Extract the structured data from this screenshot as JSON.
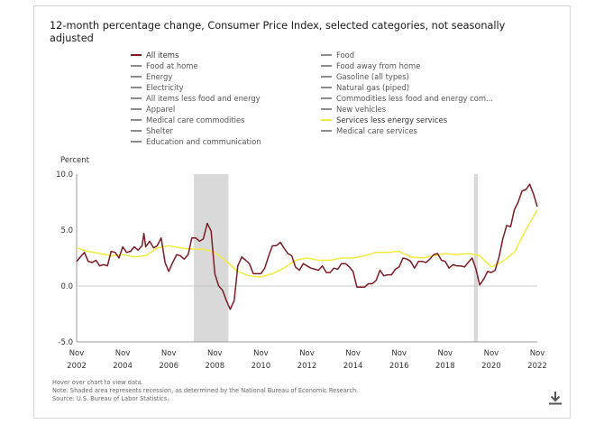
{
  "title": "12-month percentage change, Consumer Price Index, selected categories, not seasonally adjusted",
  "legend": {
    "left": [
      {
        "label": "All items",
        "color": "#7b1c25",
        "active": true
      },
      {
        "label": "Food at home",
        "color": "#8c8c8c",
        "active": false
      },
      {
        "label": "Energy",
        "color": "#8c8c8c",
        "active": false
      },
      {
        "label": "Electricity",
        "color": "#8c8c8c",
        "active": false
      },
      {
        "label": "All items less food and energy",
        "color": "#8c8c8c",
        "active": false
      },
      {
        "label": "Apparel",
        "color": "#8c8c8c",
        "active": false
      },
      {
        "label": "Medical care commodities",
        "color": "#8c8c8c",
        "active": false
      },
      {
        "label": "Shelter",
        "color": "#8c8c8c",
        "active": false
      },
      {
        "label": "Education and communication",
        "color": "#8c8c8c",
        "active": false
      }
    ],
    "right": [
      {
        "label": "Food",
        "color": "#8c8c8c",
        "active": false
      },
      {
        "label": "Food away from home",
        "color": "#8c8c8c",
        "active": false
      },
      {
        "label": "Gasoline (all types)",
        "color": "#8c8c8c",
        "active": false
      },
      {
        "label": "Natural gas (piped)",
        "color": "#8c8c8c",
        "active": false
      },
      {
        "label": "Commodities less food and energy com...",
        "color": "#8c8c8c",
        "active": false
      },
      {
        "label": "New vehicles",
        "color": "#8c8c8c",
        "active": false
      },
      {
        "label": "Services less energy services",
        "color": "#f2ea3c",
        "active": true
      },
      {
        "label": "Medical care services",
        "color": "#8c8c8c",
        "active": false
      }
    ]
  },
  "footnotes": {
    "hover": "Hover over chart to view data.",
    "note": "Note: Shaded area represents recession, as determined by the National Bureau of Economic Research.",
    "source": "Source: U.S. Bureau of Labor Statistics."
  },
  "download_icon": "download-icon",
  "chart_data": {
    "type": "line",
    "ylabel": "Percent",
    "ylim": [
      -5.0,
      10.0
    ],
    "yticks": [
      "10.0",
      "5.0",
      "0.0",
      "-5.0"
    ],
    "ytick_values": [
      10,
      5,
      0,
      -5
    ],
    "xlim": [
      2002.83,
      2022.83
    ],
    "xticks": [
      {
        "top": "Nov",
        "bottom": "2002",
        "x": 2002.83
      },
      {
        "top": "Nov",
        "bottom": "2004",
        "x": 2004.83
      },
      {
        "top": "Nov",
        "bottom": "2006",
        "x": 2006.83
      },
      {
        "top": "Nov",
        "bottom": "2008",
        "x": 2008.83
      },
      {
        "top": "Nov",
        "bottom": "2010",
        "x": 2010.83
      },
      {
        "top": "Nov",
        "bottom": "2012",
        "x": 2012.83
      },
      {
        "top": "Nov",
        "bottom": "2014",
        "x": 2014.83
      },
      {
        "top": "Nov",
        "bottom": "2016",
        "x": 2016.83
      },
      {
        "top": "Nov",
        "bottom": "2018",
        "x": 2018.83
      },
      {
        "top": "Nov",
        "bottom": "2020",
        "x": 2020.83
      },
      {
        "top": "Nov",
        "bottom": "2022",
        "x": 2022.83
      }
    ],
    "recessions": [
      [
        2007.92,
        2009.42
      ],
      [
        2020.08,
        2020.25
      ]
    ],
    "grid": "zero-line",
    "series": [
      {
        "name": "All items",
        "color": "#7b1c25",
        "x": [
          2002.83,
          2003.0,
          2003.17,
          2003.33,
          2003.5,
          2003.67,
          2003.83,
          2004.0,
          2004.17,
          2004.33,
          2004.5,
          2004.67,
          2004.83,
          2005.0,
          2005.17,
          2005.33,
          2005.5,
          2005.67,
          2005.75,
          2005.83,
          2006.0,
          2006.17,
          2006.33,
          2006.5,
          2006.67,
          2006.83,
          2007.0,
          2007.17,
          2007.33,
          2007.5,
          2007.67,
          2007.83,
          2008.0,
          2008.17,
          2008.33,
          2008.5,
          2008.67,
          2008.83,
          2009.0,
          2009.17,
          2009.33,
          2009.5,
          2009.67,
          2009.83,
          2010.0,
          2010.17,
          2010.33,
          2010.5,
          2010.67,
          2010.83,
          2011.0,
          2011.17,
          2011.33,
          2011.5,
          2011.67,
          2011.83,
          2012.0,
          2012.17,
          2012.33,
          2012.5,
          2012.67,
          2012.83,
          2013.0,
          2013.17,
          2013.33,
          2013.5,
          2013.67,
          2013.83,
          2014.0,
          2014.17,
          2014.33,
          2014.5,
          2014.67,
          2014.83,
          2015.0,
          2015.17,
          2015.33,
          2015.5,
          2015.67,
          2015.83,
          2016.0,
          2016.17,
          2016.33,
          2016.5,
          2016.67,
          2016.83,
          2017.0,
          2017.17,
          2017.33,
          2017.5,
          2017.67,
          2017.83,
          2018.0,
          2018.17,
          2018.33,
          2018.5,
          2018.67,
          2018.83,
          2019.0,
          2019.17,
          2019.33,
          2019.5,
          2019.67,
          2019.83,
          2020.0,
          2020.17,
          2020.33,
          2020.5,
          2020.67,
          2020.83,
          2021.0,
          2021.17,
          2021.33,
          2021.5,
          2021.67,
          2021.83,
          2022.0,
          2022.17,
          2022.33,
          2022.5,
          2022.67,
          2022.83
        ],
        "y": [
          2.2,
          2.6,
          3.0,
          2.2,
          2.1,
          2.3,
          1.8,
          1.9,
          1.8,
          3.1,
          3.0,
          2.5,
          3.5,
          3.0,
          3.1,
          3.5,
          3.2,
          3.6,
          4.7,
          3.5,
          4.0,
          3.4,
          3.6,
          4.3,
          2.1,
          1.3,
          2.1,
          2.8,
          2.7,
          2.4,
          2.8,
          4.3,
          4.3,
          4.0,
          4.2,
          5.6,
          4.9,
          1.1,
          0.0,
          -0.4,
          -1.3,
          -2.1,
          -1.3,
          1.8,
          2.6,
          2.3,
          2.0,
          1.1,
          1.1,
          1.1,
          1.6,
          2.7,
          3.6,
          3.6,
          3.9,
          3.4,
          2.9,
          2.7,
          1.7,
          1.4,
          2.0,
          1.8,
          1.6,
          1.5,
          1.4,
          1.8,
          1.2,
          1.2,
          1.6,
          1.5,
          2.0,
          2.0,
          1.7,
          1.3,
          -0.1,
          -0.1,
          -0.1,
          0.2,
          0.2,
          0.5,
          1.4,
          0.9,
          1.0,
          1.0,
          1.5,
          1.7,
          2.5,
          2.4,
          2.2,
          1.6,
          2.2,
          2.2,
          2.1,
          2.4,
          2.8,
          2.9,
          2.3,
          2.2,
          1.6,
          1.9,
          1.8,
          1.8,
          1.7,
          2.1,
          2.5,
          1.5,
          0.1,
          0.6,
          1.3,
          1.2,
          1.4,
          2.6,
          4.2,
          5.4,
          5.3,
          6.8,
          7.5,
          8.5,
          8.6,
          9.1,
          8.2,
          7.1
        ]
      },
      {
        "name": "Services less energy services",
        "color": "#f2ea3c",
        "x": [
          2002.83,
          2003.33,
          2003.83,
          2004.33,
          2004.83,
          2005.33,
          2005.83,
          2006.33,
          2006.83,
          2007.33,
          2007.83,
          2008.33,
          2008.83,
          2009.33,
          2009.83,
          2010.33,
          2010.83,
          2011.33,
          2011.83,
          2012.33,
          2012.83,
          2013.33,
          2013.83,
          2014.33,
          2014.83,
          2015.33,
          2015.83,
          2016.33,
          2016.83,
          2017.33,
          2017.83,
          2018.33,
          2018.83,
          2019.33,
          2019.83,
          2020.33,
          2020.83,
          2021.33,
          2021.83,
          2022.33,
          2022.83
        ],
        "y": [
          3.4,
          3.1,
          2.9,
          2.7,
          2.8,
          2.6,
          2.7,
          3.4,
          3.6,
          3.4,
          3.3,
          3.3,
          3.0,
          2.2,
          1.3,
          0.9,
          0.8,
          1.1,
          1.6,
          2.3,
          2.5,
          2.3,
          2.3,
          2.5,
          2.5,
          2.7,
          3.0,
          3.0,
          3.1,
          2.6,
          2.5,
          2.7,
          2.9,
          2.8,
          2.9,
          2.7,
          1.7,
          2.2,
          3.0,
          5.0,
          6.8
        ]
      }
    ]
  }
}
